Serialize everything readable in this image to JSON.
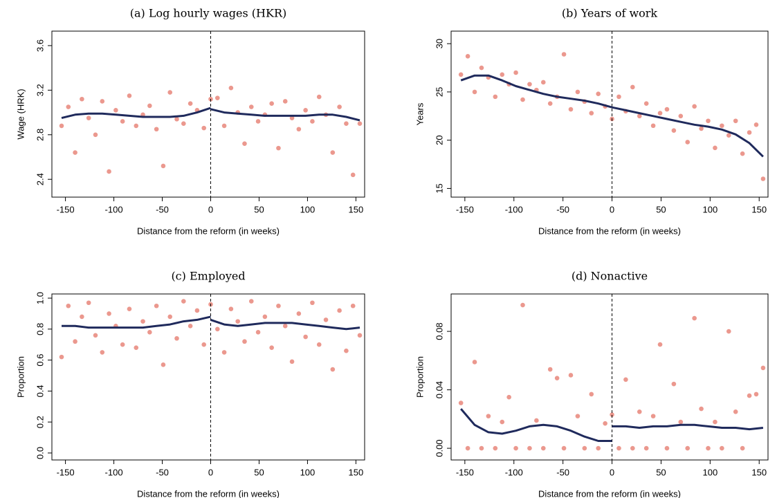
{
  "chart_data": [
    {
      "type": "scatter",
      "title": "(a) Log hourly wages (HKR)",
      "xlabel": "Distance from the reform (in weeks)",
      "ylabel": "Wage (HRK)",
      "xlim": [
        -164,
        159
      ],
      "ylim": [
        2.24,
        3.73
      ],
      "xticks": [
        -150,
        -100,
        -50,
        0,
        50,
        100,
        150
      ],
      "yticks": [
        2.4,
        2.8,
        3.2,
        3.6
      ],
      "cutoff": 0,
      "points": {
        "color": "#e8867a",
        "x": [
          -154,
          -147,
          -140,
          -133,
          -126,
          -119,
          -112,
          -105,
          -98,
          -91,
          -84,
          -77,
          -70,
          -63,
          -56,
          -49,
          -42,
          -35,
          -28,
          -21,
          -14,
          -7,
          0,
          7,
          14,
          21,
          28,
          35,
          42,
          49,
          56,
          63,
          70,
          77,
          84,
          91,
          98,
          105,
          112,
          119,
          126,
          133,
          140,
          147,
          154
        ],
        "values": [
          2.88,
          3.05,
          2.64,
          3.12,
          2.95,
          2.8,
          3.1,
          2.47,
          3.02,
          2.92,
          3.15,
          2.88,
          2.98,
          3.06,
          2.85,
          2.52,
          3.18,
          2.94,
          2.9,
          3.08,
          3.02,
          2.86,
          3.12,
          3.13,
          2.88,
          3.22,
          3.0,
          2.72,
          3.05,
          2.92,
          2.98,
          3.08,
          2.68,
          3.1,
          2.95,
          2.85,
          3.02,
          2.92,
          3.14,
          2.98,
          2.64,
          3.05,
          2.9,
          2.44,
          2.9
        ]
      },
      "fit": {
        "color": "#1f2a5c",
        "x": [
          -154,
          -140,
          -126,
          -112,
          -98,
          -84,
          -70,
          -56,
          -42,
          -28,
          -14,
          0,
          0,
          0,
          14,
          28,
          42,
          56,
          70,
          84,
          98,
          112,
          126,
          140,
          154
        ],
        "values": [
          2.95,
          2.98,
          2.99,
          2.99,
          2.98,
          2.97,
          2.96,
          2.96,
          2.96,
          2.97,
          3.0,
          3.04,
          null,
          3.03,
          3.0,
          2.99,
          2.98,
          2.97,
          2.97,
          2.97,
          2.97,
          2.98,
          2.98,
          2.96,
          2.93
        ]
      }
    },
    {
      "type": "scatter",
      "title": "(b) Years of work",
      "xlabel": "Distance from the reform (in weeks)",
      "ylabel": "Years",
      "xlim": [
        -164,
        159
      ],
      "ylim": [
        14.1,
        31.3
      ],
      "xticks": [
        -150,
        -100,
        -50,
        0,
        50,
        100,
        150
      ],
      "yticks": [
        15,
        20,
        25,
        30
      ],
      "cutoff": 0,
      "points": {
        "color": "#e8867a",
        "x": [
          -154,
          -147,
          -140,
          -133,
          -126,
          -119,
          -112,
          -105,
          -98,
          -91,
          -84,
          -77,
          -70,
          -63,
          -56,
          -49,
          -42,
          -35,
          -28,
          -21,
          -14,
          -7,
          0,
          7,
          14,
          21,
          28,
          35,
          42,
          49,
          56,
          63,
          70,
          77,
          84,
          91,
          98,
          105,
          112,
          119,
          126,
          133,
          140,
          147,
          154
        ],
        "values": [
          26.8,
          28.7,
          25.0,
          27.5,
          26.5,
          24.5,
          26.8,
          25.8,
          27.0,
          24.2,
          25.8,
          25.2,
          26.0,
          23.8,
          24.5,
          28.9,
          23.2,
          25.0,
          24.0,
          22.8,
          24.8,
          23.5,
          22.2,
          24.5,
          23.0,
          25.5,
          22.5,
          23.8,
          21.5,
          22.8,
          23.2,
          21.0,
          22.5,
          19.8,
          23.5,
          21.2,
          22.0,
          19.2,
          21.5,
          20.5,
          22.0,
          18.6,
          20.8,
          21.6,
          16.0
        ]
      },
      "fit": {
        "color": "#1f2a5c",
        "x": [
          -154,
          -140,
          -126,
          -112,
          -98,
          -84,
          -70,
          -56,
          -42,
          -28,
          -14,
          0,
          0,
          0,
          14,
          28,
          42,
          56,
          70,
          84,
          98,
          112,
          126,
          140,
          154
        ],
        "values": [
          26.2,
          26.7,
          26.7,
          26.2,
          25.6,
          25.2,
          24.8,
          24.5,
          24.3,
          24.1,
          23.8,
          23.4,
          null,
          23.4,
          23.1,
          22.8,
          22.5,
          22.2,
          21.9,
          21.6,
          21.4,
          21.1,
          20.6,
          19.7,
          18.3
        ]
      }
    },
    {
      "type": "scatter",
      "title": "(c) Employed",
      "xlabel": "Distance from the reform (in weeks)",
      "ylabel": "Proportion",
      "xlim": [
        -164,
        159
      ],
      "ylim": [
        -0.045,
        1.027
      ],
      "xticks": [
        -150,
        -100,
        -50,
        0,
        50,
        100,
        150
      ],
      "yticks": [
        {
          "value": 0,
          "label": "0.0"
        },
        0.2,
        0.4,
        0.6,
        0.8,
        {
          "value": 1,
          "label": "1.0"
        }
      ],
      "cutoff": 0,
      "points": {
        "color": "#e8867a",
        "x": [
          -154,
          -147,
          -140,
          -133,
          -126,
          -119,
          -112,
          -105,
          -98,
          -91,
          -84,
          -77,
          -70,
          -63,
          -56,
          -49,
          -42,
          -35,
          -28,
          -21,
          -14,
          -7,
          0,
          7,
          14,
          21,
          28,
          35,
          42,
          49,
          56,
          63,
          70,
          77,
          84,
          91,
          98,
          105,
          112,
          119,
          126,
          133,
          140,
          147,
          154
        ],
        "values": [
          0.62,
          0.95,
          0.72,
          0.88,
          0.97,
          0.76,
          0.65,
          0.9,
          0.82,
          0.7,
          0.93,
          0.68,
          0.85,
          0.78,
          0.95,
          0.57,
          0.88,
          0.74,
          0.98,
          0.82,
          0.92,
          0.7,
          0.96,
          0.8,
          0.65,
          0.93,
          0.85,
          0.72,
          0.98,
          0.78,
          0.88,
          0.68,
          0.95,
          0.82,
          0.59,
          0.9,
          0.75,
          0.97,
          0.7,
          0.86,
          0.54,
          0.92,
          0.66,
          0.95,
          0.76
        ]
      },
      "fit": {
        "color": "#1f2a5c",
        "x": [
          -154,
          -140,
          -126,
          -112,
          -98,
          -84,
          -70,
          -56,
          -42,
          -28,
          -14,
          0,
          0,
          0,
          14,
          28,
          42,
          56,
          70,
          84,
          98,
          112,
          126,
          140,
          154
        ],
        "values": [
          0.82,
          0.82,
          0.81,
          0.81,
          0.81,
          0.81,
          0.81,
          0.82,
          0.83,
          0.85,
          0.86,
          0.88,
          null,
          0.86,
          0.83,
          0.82,
          0.83,
          0.84,
          0.84,
          0.84,
          0.83,
          0.82,
          0.81,
          0.8,
          0.81
        ]
      }
    },
    {
      "type": "scatter",
      "title": "(d) Nonactive",
      "xlabel": "Distance from the reform (in weeks)",
      "ylabel": "Proportion",
      "xlim": [
        -164,
        159
      ],
      "ylim": [
        -0.008,
        0.1056
      ],
      "xticks": [
        -150,
        -100,
        -50,
        0,
        50,
        100,
        150
      ],
      "yticks": [
        {
          "value": 0,
          "label": "0.00"
        },
        {
          "value": 0.04,
          "label": "0.04"
        },
        {
          "value": 0.08,
          "label": "0.08"
        }
      ],
      "cutoff": 0,
      "points": {
        "color": "#e8867a",
        "x": [
          -154,
          -147,
          -140,
          -133,
          -126,
          -119,
          -112,
          -105,
          -98,
          -91,
          -84,
          -77,
          -70,
          -63,
          -56,
          -49,
          -42,
          -35,
          -28,
          -21,
          -14,
          -7,
          0,
          7,
          14,
          21,
          28,
          35,
          42,
          49,
          56,
          63,
          70,
          77,
          84,
          91,
          98,
          105,
          112,
          119,
          126,
          133,
          140,
          147,
          154
        ],
        "values": [
          0.031,
          0,
          0.059,
          0,
          0.022,
          0,
          0.018,
          0.035,
          0,
          0.098,
          0,
          0.019,
          0,
          0.054,
          0.048,
          0,
          0.05,
          0.022,
          0,
          0.037,
          0,
          0.017,
          0.023,
          0,
          0.047,
          0,
          0.025,
          0,
          0.022,
          0.071,
          0,
          0.044,
          0.018,
          0,
          0.089,
          0.027,
          0,
          0.018,
          0,
          0.08,
          0.025,
          0,
          0.036,
          0.037,
          0.055
        ]
      },
      "fit": {
        "color": "#1f2a5c",
        "x": [
          -154,
          -140,
          -126,
          -112,
          -98,
          -84,
          -70,
          -56,
          -42,
          -28,
          -14,
          0,
          0,
          0,
          14,
          28,
          42,
          56,
          70,
          84,
          98,
          112,
          126,
          140,
          154
        ],
        "values": [
          0.027,
          0.016,
          0.011,
          0.01,
          0.012,
          0.015,
          0.016,
          0.015,
          0.012,
          0.008,
          0.005,
          0.005,
          null,
          0.015,
          0.015,
          0.014,
          0.015,
          0.015,
          0.016,
          0.016,
          0.015,
          0.014,
          0.014,
          0.013,
          0.014
        ]
      }
    }
  ]
}
